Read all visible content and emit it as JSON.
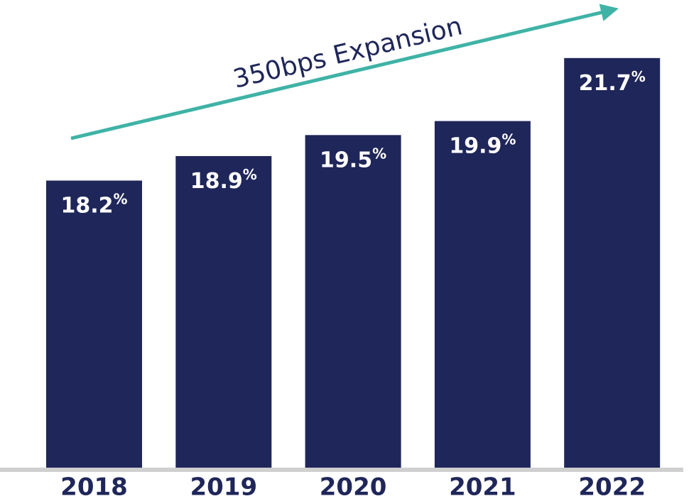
{
  "chart_data": {
    "type": "bar",
    "annotation": "350bps Expansion",
    "categories": [
      "2018",
      "2019",
      "2020",
      "2021",
      "2022"
    ],
    "values": [
      18.2,
      18.9,
      19.5,
      19.9,
      21.7
    ],
    "value_labels": [
      "18.2%",
      "18.9%",
      "19.5%",
      "19.9%",
      "21.7%"
    ],
    "color": "#1f2659",
    "ylim": [
      10,
      22
    ]
  }
}
